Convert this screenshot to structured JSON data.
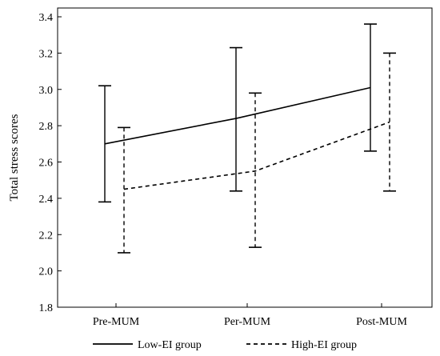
{
  "chart_data": {
    "type": "line",
    "title": "",
    "xlabel": "",
    "ylabel": "Total stress scores",
    "categories": [
      "Pre-MUM",
      "Per-MUM",
      "Post-MUM"
    ],
    "ylim": [
      1.8,
      3.4
    ],
    "yticks": [
      "1.8",
      "2.0",
      "2.2",
      "2.4",
      "2.6",
      "2.8",
      "3.0",
      "3.2",
      "3.4"
    ],
    "grid": false,
    "legend_position": "bottom",
    "series": [
      {
        "name": "Low-EI group",
        "style": "solid",
        "values": [
          2.7,
          2.84,
          3.01
        ],
        "error_low": [
          2.38,
          2.44,
          2.66
        ],
        "error_high": [
          3.02,
          3.23,
          3.36
        ]
      },
      {
        "name": "High-EI group",
        "style": "dashed",
        "values": [
          2.45,
          2.55,
          2.82
        ],
        "error_low": [
          2.1,
          2.13,
          2.44
        ],
        "error_high": [
          2.79,
          2.98,
          3.2
        ]
      }
    ]
  }
}
